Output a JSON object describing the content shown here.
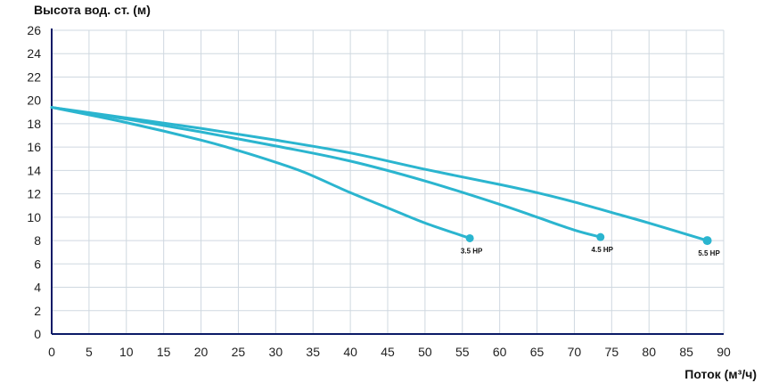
{
  "chart_data": {
    "type": "line",
    "ylabel": "Высота вод. ст. (м)",
    "xlabel": "Поток (м³/ч)",
    "xlim": [
      0,
      90
    ],
    "ylim": [
      0,
      26
    ],
    "x_ticks": [
      0,
      5,
      10,
      15,
      20,
      25,
      30,
      35,
      40,
      45,
      50,
      55,
      60,
      65,
      70,
      75,
      80,
      85,
      90
    ],
    "y_ticks": [
      0,
      2,
      4,
      6,
      8,
      10,
      12,
      14,
      16,
      18,
      20,
      22,
      24,
      26
    ],
    "grid": true,
    "colors": {
      "line": "#2bb5cf",
      "grid": "#cfd8e0",
      "axis": "#0b1a66"
    },
    "series": [
      {
        "name": "3.5 HP",
        "x": [
          0,
          10,
          20,
          25,
          30,
          34,
          40,
          45,
          50,
          56
        ],
        "y": [
          19.4,
          18.1,
          16.6,
          15.7,
          14.7,
          13.8,
          12.1,
          10.8,
          9.5,
          8.2
        ]
      },
      {
        "name": "4.5 HP",
        "x": [
          0,
          10,
          20,
          30,
          40,
          50,
          60,
          65,
          70,
          73.5
        ],
        "y": [
          19.4,
          18.4,
          17.3,
          16.1,
          14.8,
          13.1,
          11.1,
          10.0,
          8.9,
          8.3
        ]
      },
      {
        "name": "5.5 HP",
        "x": [
          0,
          10,
          20,
          30,
          40,
          50,
          60,
          65,
          70,
          75,
          80,
          87.8
        ],
        "y": [
          19.4,
          18.5,
          17.6,
          16.6,
          15.5,
          14.1,
          12.8,
          12.1,
          11.3,
          10.4,
          9.5,
          8.0
        ]
      }
    ]
  }
}
